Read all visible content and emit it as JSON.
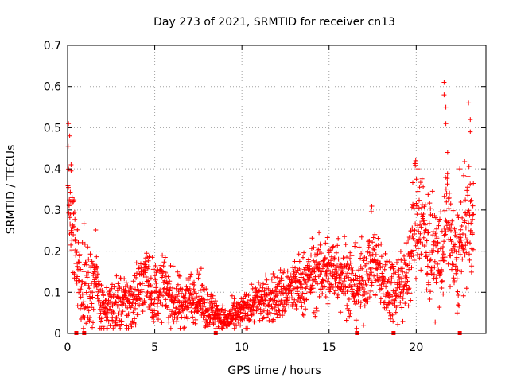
{
  "chart_data": {
    "type": "scatter",
    "title": "Day 273 of 2021, SRMTID for receiver cn13",
    "xlabel": "GPS time / hours",
    "ylabel": "SRMTID / TECUs",
    "xlim": [
      0,
      24
    ],
    "ylim": [
      0,
      0.7
    ],
    "xticks": [
      0,
      5,
      10,
      15,
      20
    ],
    "yticks": [
      0,
      0.1,
      0.2,
      0.3,
      0.4,
      0.5,
      0.6,
      0.7
    ],
    "grid": true,
    "marker": "+",
    "color": "#ff0000",
    "series": [
      {
        "name": "SRMTID",
        "trend": [
          [
            0.0,
            0.42
          ],
          [
            0.15,
            0.3
          ],
          [
            0.3,
            0.26
          ],
          [
            0.45,
            0.2
          ],
          [
            0.6,
            0.16
          ],
          [
            0.8,
            0.14
          ],
          [
            1.0,
            0.11
          ],
          [
            1.3,
            0.1
          ],
          [
            1.6,
            0.15
          ],
          [
            1.9,
            0.07
          ],
          [
            2.5,
            0.06
          ],
          [
            3.0,
            0.07
          ],
          [
            3.5,
            0.07
          ],
          [
            4.0,
            0.1
          ],
          [
            4.5,
            0.14
          ],
          [
            5.0,
            0.09
          ],
          [
            5.5,
            0.12
          ],
          [
            6.0,
            0.08
          ],
          [
            6.5,
            0.07
          ],
          [
            7.0,
            0.09
          ],
          [
            7.5,
            0.09
          ],
          [
            8.0,
            0.06
          ],
          [
            8.5,
            0.05
          ],
          [
            9.0,
            0.03
          ],
          [
            9.5,
            0.04
          ],
          [
            10.0,
            0.05
          ],
          [
            10.5,
            0.07
          ],
          [
            11.0,
            0.08
          ],
          [
            11.5,
            0.08
          ],
          [
            12.0,
            0.09
          ],
          [
            12.5,
            0.1
          ],
          [
            13.0,
            0.11
          ],
          [
            13.5,
            0.12
          ],
          [
            14.0,
            0.14
          ],
          [
            14.5,
            0.15
          ],
          [
            15.0,
            0.15
          ],
          [
            15.5,
            0.16
          ],
          [
            16.0,
            0.14
          ],
          [
            16.5,
            0.11
          ],
          [
            17.0,
            0.13
          ],
          [
            17.5,
            0.19
          ],
          [
            18.0,
            0.13
          ],
          [
            18.5,
            0.11
          ],
          [
            19.0,
            0.12
          ],
          [
            19.5,
            0.14
          ],
          [
            20.0,
            0.3
          ],
          [
            20.3,
            0.28
          ],
          [
            20.6,
            0.22
          ],
          [
            21.0,
            0.2
          ],
          [
            21.5,
            0.18
          ],
          [
            21.8,
            0.3
          ],
          [
            22.2,
            0.16
          ],
          [
            22.6,
            0.21
          ],
          [
            23.0,
            0.28
          ],
          [
            23.3,
            0.25
          ]
        ],
        "spread_by_hour": [
          [
            0,
            0.06
          ],
          [
            1,
            0.05
          ],
          [
            2,
            0.03
          ],
          [
            4,
            0.04
          ],
          [
            6,
            0.035
          ],
          [
            8,
            0.025
          ],
          [
            9,
            0.015
          ],
          [
            11,
            0.025
          ],
          [
            13,
            0.035
          ],
          [
            15,
            0.045
          ],
          [
            17,
            0.045
          ],
          [
            19,
            0.04
          ],
          [
            20,
            0.07
          ],
          [
            22,
            0.06
          ],
          [
            23.3,
            0.07
          ]
        ],
        "peaks": [
          {
            "x": 0.05,
            "y": 0.51
          },
          {
            "x": 0.12,
            "y": 0.48
          },
          {
            "x": 0.2,
            "y": 0.41
          },
          {
            "x": 20.1,
            "y": 0.4
          },
          {
            "x": 21.6,
            "y": 0.61
          },
          {
            "x": 21.6,
            "y": 0.58
          },
          {
            "x": 21.7,
            "y": 0.55
          },
          {
            "x": 21.7,
            "y": 0.51
          },
          {
            "x": 21.8,
            "y": 0.44
          },
          {
            "x": 23.0,
            "y": 0.56
          },
          {
            "x": 23.1,
            "y": 0.52
          },
          {
            "x": 23.1,
            "y": 0.49
          },
          {
            "x": 22.5,
            "y": 0.4
          }
        ],
        "gap_markers_x": [
          0.5,
          0.95,
          8.5,
          16.6,
          18.7,
          22.5
        ]
      }
    ]
  }
}
